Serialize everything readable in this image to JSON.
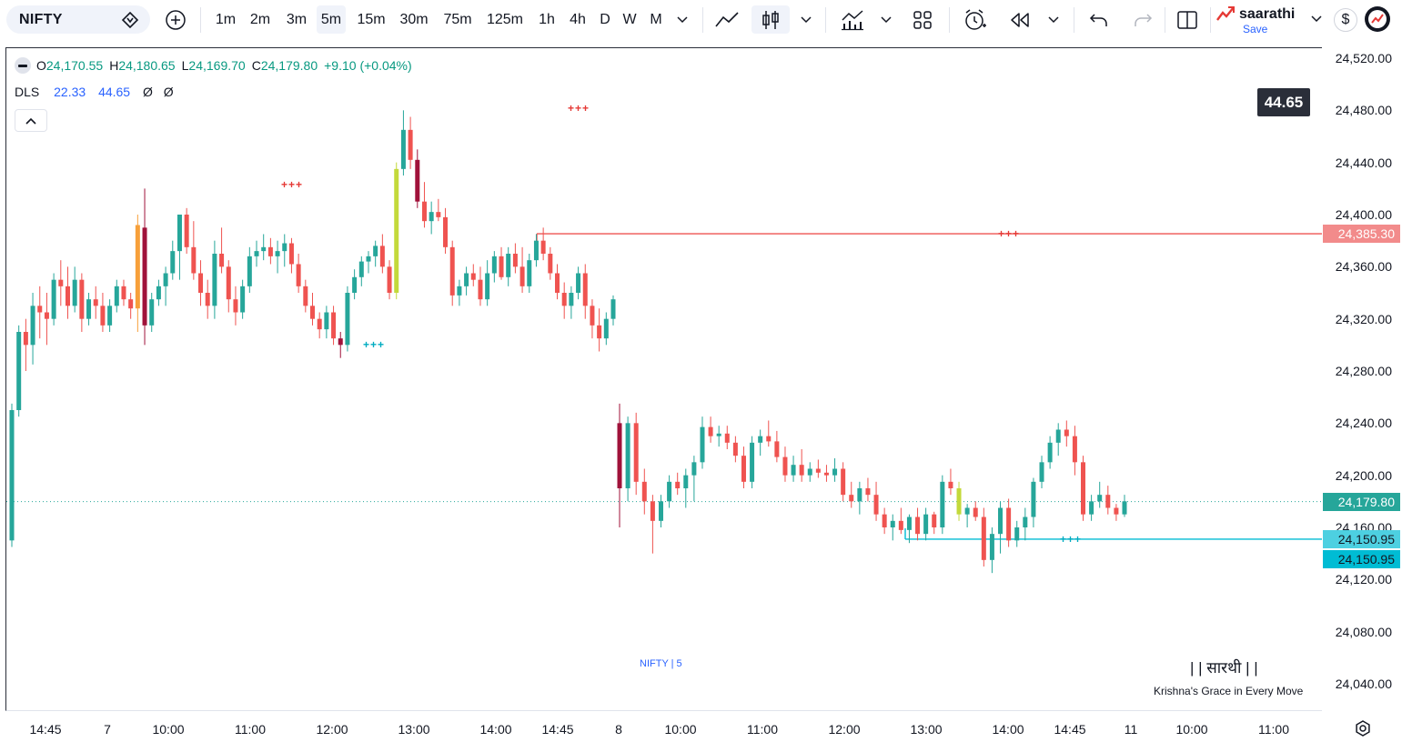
{
  "symbol": {
    "name": "NIFTY",
    "alert_icon": "alert-diamond-icon",
    "compare_icon": "plus-circle-icon"
  },
  "intervals": [
    "1m",
    "2m",
    "3m",
    "5m",
    "15m",
    "30m",
    "75m",
    "125m",
    "1h",
    "4h",
    "D",
    "W",
    "M"
  ],
  "active_interval": "5m",
  "user": {
    "name": "saarathi",
    "save_label": "Save"
  },
  "legend": {
    "o_key": "O",
    "o": "24,170.55",
    "h_key": "H",
    "h": "24,180.65",
    "l_key": "L",
    "l": "24,169.70",
    "c_key": "C",
    "c": "24,179.80",
    "change": "+9.10 (+0.04%)",
    "indicator": {
      "name": "DLS",
      "v1": "22.33",
      "v2": "44.65",
      "v3": "Ø",
      "v4": "Ø"
    }
  },
  "value_badge": "44.65",
  "price_axis": {
    "ticks": [
      "24,520.00",
      "24,480.00",
      "24,440.00",
      "24,400.00",
      "24,360.00",
      "24,320.00",
      "24,280.00",
      "24,240.00",
      "24,200.00",
      "24,160.00",
      "24,120.00",
      "24,080.00",
      "24,040.00"
    ],
    "tag_resistance": "24,385.30",
    "tag_last": "24,179.80",
    "tag_support_1": "24,150.95",
    "tag_support_2": "24,150.95"
  },
  "time_axis": [
    "14:45",
    "7",
    "10:00",
    "11:00",
    "12:00",
    "13:00",
    "14:00",
    "14:45",
    "8",
    "10:00",
    "11:00",
    "12:00",
    "13:00",
    "14:00",
    "14:45",
    "11",
    "10:00",
    "11:00"
  ],
  "markers": {
    "red_1": "+++",
    "red_2": "+++",
    "red_3": "+++",
    "teal_1": "+++",
    "teal_2": "+++"
  },
  "watermark": "NIFTY | 5",
  "brand": {
    "title": "| | सारथी | |",
    "subtitle": "Krishna's Grace in Every Move"
  },
  "colors": {
    "up": "#26a69a",
    "down": "#ef5350",
    "dark_down": "#a0123a",
    "highlight_up": "#c3d93b",
    "highlight_down": "#f7a03a",
    "resistance": "#ef5350",
    "support": "#00bcd4",
    "last_price": "#26a69a"
  },
  "chart_data": {
    "type": "candlestick",
    "price_ylim": [
      24020,
      24540
    ],
    "resistance_level": 24385.3,
    "support_level": 24150.95,
    "last_price": 24179.8,
    "candles": [
      [
        24150,
        24255,
        24145,
        24250
      ],
      [
        24250,
        24315,
        24245,
        24310
      ],
      [
        24310,
        24320,
        24280,
        24300
      ],
      [
        24300,
        24340,
        24285,
        24330
      ],
      [
        24330,
        24345,
        24305,
        24325
      ],
      [
        24325,
        24340,
        24300,
        24320
      ],
      [
        24320,
        24355,
        24315,
        24350
      ],
      [
        24350,
        24365,
        24330,
        24345
      ],
      [
        24345,
        24360,
        24320,
        24330
      ],
      [
        24330,
        24360,
        24325,
        24350
      ],
      [
        24350,
        24355,
        24310,
        24320
      ],
      [
        24320,
        24340,
        24315,
        24335
      ],
      [
        24335,
        24345,
        24320,
        24330
      ],
      [
        24330,
        24340,
        24310,
        24315
      ],
      [
        24315,
        24335,
        24310,
        24330
      ],
      [
        24330,
        24350,
        24325,
        24345
      ],
      [
        24345,
        24350,
        24330,
        24335
      ],
      [
        24335,
        24340,
        24320,
        24328
      ],
      [
        24328,
        24400,
        24310,
        24392
      ],
      [
        24390,
        24420,
        24300,
        24315
      ],
      [
        24315,
        24340,
        24310,
        24335
      ],
      [
        24335,
        24350,
        24330,
        24345
      ],
      [
        24345,
        24360,
        24330,
        24355
      ],
      [
        24355,
        24380,
        24350,
        24372
      ],
      [
        24372,
        24400,
        24350,
        24400
      ],
      [
        24400,
        24405,
        24370,
        24375
      ],
      [
        24375,
        24395,
        24350,
        24355
      ],
      [
        24355,
        24365,
        24330,
        24340
      ],
      [
        24340,
        24350,
        24320,
        24330
      ],
      [
        24330,
        24380,
        24320,
        24370
      ],
      [
        24370,
        24390,
        24355,
        24360
      ],
      [
        24360,
        24365,
        24325,
        24335
      ],
      [
        24335,
        24345,
        24315,
        24325
      ],
      [
        24325,
        24350,
        24320,
        24345
      ],
      [
        24345,
        24375,
        24340,
        24368
      ],
      [
        24368,
        24380,
        24360,
        24372
      ],
      [
        24372,
        24385,
        24365,
        24375
      ],
      [
        24375,
        24382,
        24362,
        24368
      ],
      [
        24368,
        24380,
        24355,
        24372
      ],
      [
        24372,
        24385,
        24360,
        24378
      ],
      [
        24378,
        24382,
        24355,
        24362
      ],
      [
        24362,
        24370,
        24340,
        24345
      ],
      [
        24345,
        24350,
        24325,
        24330
      ],
      [
        24330,
        24340,
        24315,
        24320
      ],
      [
        24320,
        24325,
        24305,
        24312
      ],
      [
        24312,
        24330,
        24305,
        24325
      ],
      [
        24325,
        24330,
        24300,
        24305
      ],
      [
        24305,
        24310,
        24290,
        24300
      ],
      [
        24300,
        24345,
        24295,
        24340
      ],
      [
        24340,
        24358,
        24335,
        24352
      ],
      [
        24352,
        24368,
        24345,
        24364
      ],
      [
        24364,
        24372,
        24355,
        24368
      ],
      [
        24368,
        24380,
        24360,
        24376
      ],
      [
        24376,
        24385,
        24355,
        24360
      ],
      [
        24360,
        24365,
        24335,
        24340
      ],
      [
        24340,
        24440,
        24335,
        24435
      ],
      [
        24435,
        24480,
        24430,
        24465
      ],
      [
        24465,
        24475,
        24435,
        24442
      ],
      [
        24442,
        24450,
        24405,
        24410
      ],
      [
        24410,
        24425,
        24390,
        24395
      ],
      [
        24395,
        24410,
        24385,
        24402
      ],
      [
        24402,
        24412,
        24395,
        24398
      ],
      [
        24398,
        24405,
        24370,
        24375
      ],
      [
        24375,
        24380,
        24330,
        24338
      ],
      [
        24338,
        24350,
        24330,
        24345
      ],
      [
        24345,
        24360,
        24338,
        24355
      ],
      [
        24355,
        24362,
        24345,
        24350
      ],
      [
        24350,
        24360,
        24330,
        24335
      ],
      [
        24335,
        24365,
        24330,
        24355
      ],
      [
        24355,
        24372,
        24348,
        24368
      ],
      [
        24368,
        24375,
        24350,
        24352
      ],
      [
        24352,
        24375,
        24345,
        24370
      ],
      [
        24370,
        24378,
        24355,
        24360
      ],
      [
        24360,
        24375,
        24340,
        24345
      ],
      [
        24345,
        24370,
        24340,
        24365
      ],
      [
        24365,
        24385,
        24360,
        24380
      ],
      [
        24380,
        24390,
        24365,
        24370
      ],
      [
        24370,
        24375,
        24350,
        24355
      ],
      [
        24355,
        24362,
        24335,
        24340
      ],
      [
        24340,
        24348,
        24320,
        24330
      ],
      [
        24330,
        24345,
        24320,
        24340
      ],
      [
        24340,
        24360,
        24335,
        24355
      ],
      [
        24355,
        24362,
        24320,
        24330
      ],
      [
        24330,
        24335,
        24305,
        24315
      ],
      [
        24315,
        24328,
        24295,
        24305
      ],
      [
        24305,
        24325,
        24300,
        24320
      ],
      [
        24320,
        24338,
        24315,
        24335
      ],
      [
        24240,
        24255,
        24160,
        24190
      ],
      [
        24190,
        24245,
        24180,
        24240
      ],
      [
        24240,
        24248,
        24185,
        24195
      ],
      [
        24195,
        24205,
        24170,
        24180
      ],
      [
        24180,
        24185,
        24140,
        24165
      ],
      [
        24165,
        24185,
        24160,
        24180
      ],
      [
        24180,
        24200,
        24175,
        24195
      ],
      [
        24195,
        24202,
        24185,
        24190
      ],
      [
        24190,
        24205,
        24175,
        24200
      ],
      [
        24200,
        24215,
        24180,
        24210
      ],
      [
        24210,
        24245,
        24205,
        24237
      ],
      [
        24237,
        24245,
        24225,
        24230
      ],
      [
        24230,
        24238,
        24222,
        24232
      ],
      [
        24232,
        24238,
        24220,
        24225
      ],
      [
        24225,
        24230,
        24210,
        24215
      ],
      [
        24215,
        24222,
        24190,
        24195
      ],
      [
        24195,
        24230,
        24190,
        24225
      ],
      [
        24225,
        24235,
        24215,
        24230
      ],
      [
        24230,
        24242,
        24222,
        24226
      ],
      [
        24226,
        24234,
        24210,
        24214
      ],
      [
        24214,
        24222,
        24195,
        24200
      ],
      [
        24200,
        24215,
        24195,
        24208
      ],
      [
        24208,
        24220,
        24195,
        24200
      ],
      [
        24200,
        24210,
        24195,
        24205
      ],
      [
        24205,
        24212,
        24198,
        24202
      ],
      [
        24202,
        24208,
        24195,
        24200
      ],
      [
        24200,
        24213,
        24195,
        24205
      ],
      [
        24205,
        24210,
        24180,
        24185
      ],
      [
        24185,
        24195,
        24175,
        24180
      ],
      [
        24180,
        24195,
        24170,
        24190
      ],
      [
        24190,
        24198,
        24180,
        24185
      ],
      [
        24185,
        24195,
        24165,
        24170
      ],
      [
        24170,
        24175,
        24155,
        24160
      ],
      [
        24160,
        24170,
        24150,
        24165
      ],
      [
        24165,
        24175,
        24155,
        24158
      ],
      [
        24158,
        24170,
        24148,
        24168
      ],
      [
        24168,
        24175,
        24150,
        24155
      ],
      [
        24155,
        24175,
        24150,
        24170
      ],
      [
        24170,
        24172,
        24155,
        24160
      ],
      [
        24160,
        24200,
        24155,
        24195
      ],
      [
        24195,
        24205,
        24185,
        24190
      ],
      [
        24190,
        24195,
        24165,
        24170
      ],
      [
        24170,
        24178,
        24160,
        24175
      ],
      [
        24175,
        24180,
        24165,
        24168
      ],
      [
        24168,
        24175,
        24130,
        24135
      ],
      [
        24135,
        24160,
        24125,
        24155
      ],
      [
        24155,
        24180,
        24140,
        24175
      ],
      [
        24175,
        24182,
        24145,
        24150
      ],
      [
        24150,
        24165,
        24145,
        24160
      ],
      [
        24160,
        24175,
        24150,
        24168
      ],
      [
        24168,
        24198,
        24160,
        24195
      ],
      [
        24195,
        24215,
        24190,
        24210
      ],
      [
        24210,
        24230,
        24205,
        24225
      ],
      [
        24225,
        24240,
        24215,
        24235
      ],
      [
        24235,
        24242,
        24222,
        24230
      ],
      [
        24230,
        24238,
        24200,
        24210
      ],
      [
        24210,
        24215,
        24165,
        24170
      ],
      [
        24170,
        24185,
        24165,
        24180
      ],
      [
        24180,
        24195,
        24175,
        24185
      ],
      [
        24185,
        24192,
        24170,
        24175
      ],
      [
        24175,
        24178,
        24165,
        24170
      ],
      [
        24170,
        24185,
        24168,
        24180
      ]
    ]
  }
}
